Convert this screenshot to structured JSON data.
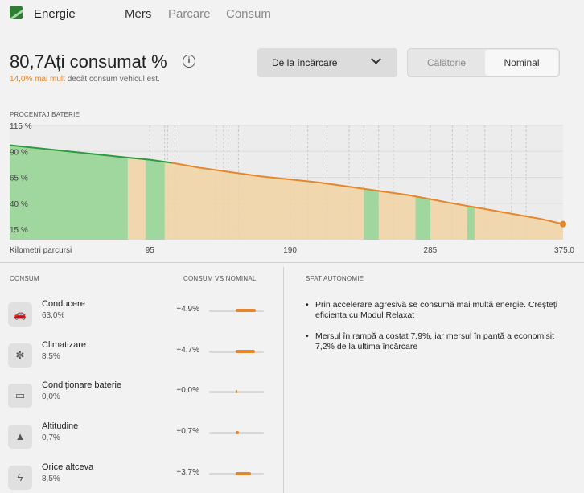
{
  "nav": {
    "title": "Energie",
    "tabs": [
      {
        "label": "Mers",
        "active": true
      },
      {
        "label": "Parcare",
        "active": false
      },
      {
        "label": "Consum",
        "active": false
      }
    ]
  },
  "header": {
    "headline": "80,7Ați consumat %",
    "info_icon": "i",
    "sub_highlight": "14,0% mai mult",
    "sub_rest": " decât consum vehicul est.",
    "dropdown_label": "De la încărcare",
    "segment_left": "Călătorie",
    "segment_right": "Nominal"
  },
  "colors": {
    "accent_orange": "#e6862a",
    "green_line": "#2e9a3e",
    "green_fill": "#9fd79f",
    "orange_fill": "#f2d3a3"
  },
  "chart_label": "PROCENTAJ BATERIE",
  "chart_data": {
    "type": "line",
    "title": "",
    "ylabel": "PROCENTAJ BATERIE",
    "xlabel": "Kilometri parcurși",
    "x_ticks": [
      "95",
      "190",
      "285",
      "375,0"
    ],
    "y_ticks": [
      "115 %",
      "90 %",
      "65 %",
      "40 %",
      "15 %"
    ],
    "xlim": [
      0,
      375
    ],
    "ylim": [
      5,
      115
    ],
    "series": [
      {
        "x": [
          0,
          20,
          40,
          60,
          80,
          95,
          110,
          130,
          150,
          170,
          190,
          210,
          230,
          250,
          270,
          285,
          300,
          320,
          340,
          360,
          375
        ],
        "y": [
          96,
          93,
          90,
          87,
          84,
          82,
          79,
          74,
          70,
          66,
          63,
          60,
          56,
          52,
          48,
          44,
          40,
          35,
          30,
          25,
          20
        ]
      }
    ],
    "green_bands": [
      [
        0,
        80
      ],
      [
        92,
        105
      ],
      [
        240,
        250
      ],
      [
        275,
        285
      ],
      [
        310,
        315
      ]
    ]
  },
  "sections": {
    "consum_title": "CONSUM",
    "vs_title": "CONSUM VS NOMINAL",
    "tips_title": "SFAT AUTONOMIE"
  },
  "rows": [
    {
      "icon": "car-icon",
      "name": "Conducere",
      "pct": "63,0%",
      "delta": "+4,9%",
      "bar": 4.9
    },
    {
      "icon": "fan-icon",
      "name": "Climatizare",
      "pct": "8,5%",
      "delta": "+4,7%",
      "bar": 4.7
    },
    {
      "icon": "battery-icon",
      "name": "Condiționare baterie",
      "pct": "0,0%",
      "delta": "+0,0%",
      "bar": 0.0
    },
    {
      "icon": "mountain-icon",
      "name": "Altitudine",
      "pct": "0,7%",
      "delta": "+0,7%",
      "bar": 0.7
    },
    {
      "icon": "bolt-icon",
      "name": "Orice altceva",
      "pct": "8,5%",
      "delta": "+3,7%",
      "bar": 3.7
    }
  ],
  "tips": [
    "Prin accelerare agresivă se consumă mai multă energie. Creșteți eficienta cu Modul Relaxat",
    "Mersul în rampă a costat 7,9%, iar mersul în pantă a economisit 7,2% de la ultima încărcare"
  ]
}
